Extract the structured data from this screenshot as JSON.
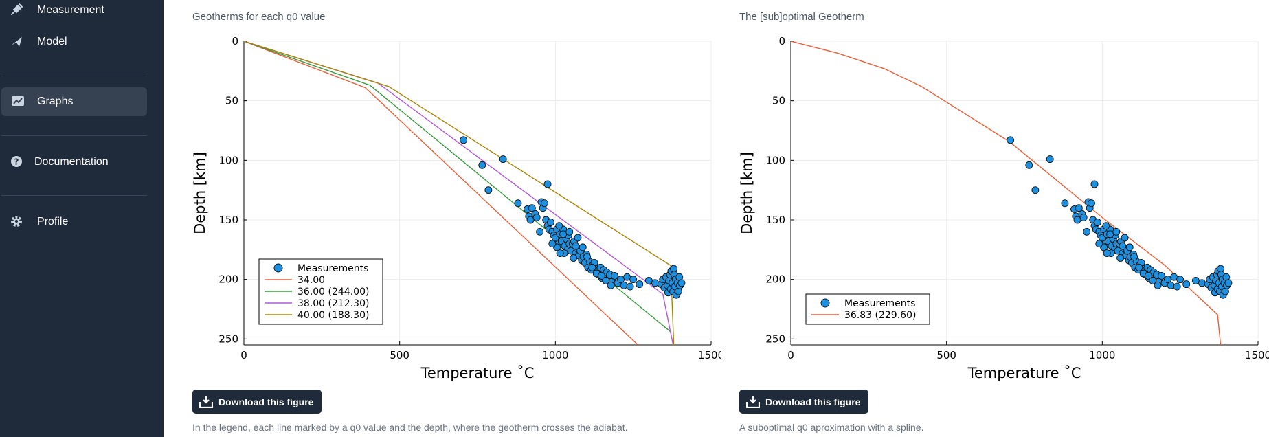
{
  "sidebar": {
    "items": [
      {
        "label": "Measurement",
        "icon": "syringe-icon"
      },
      {
        "label": "Model",
        "icon": "plane-icon"
      },
      {
        "label": "Graphs",
        "icon": "chart-icon",
        "active": true
      },
      {
        "label": "Documentation",
        "icon": "question-circle-icon"
      },
      {
        "label": "Profile",
        "icon": "gear-icon"
      }
    ]
  },
  "panels": [
    {
      "title": "Geotherms for each q0 value",
      "download_label": "Download this figure",
      "caption": "In the legend, each line marked by a q0 value and the depth, where the geotherm crosses the adiabat."
    },
    {
      "title": "The [sub]optimal Geotherm",
      "download_label": "Download this figure",
      "caption": "A suboptimal q0 aproximation with a spline."
    }
  ],
  "chart_data": [
    {
      "type": "line",
      "xlabel": "Temperature ˚C",
      "ylabel": "Depth [km]",
      "xlim": [
        0,
        1500
      ],
      "ylim": [
        255,
        0
      ],
      "x_ticks": [
        0,
        500,
        1000,
        1500
      ],
      "y_ticks": [
        0,
        50,
        100,
        150,
        200,
        250
      ],
      "grid": true,
      "legend": "bottom-left",
      "series": [
        {
          "name": "Measurements",
          "kind": "scatter",
          "color": "#1e90e0",
          "points": [
            [
              705,
              83
            ],
            [
              765,
              104
            ],
            [
              785,
              125
            ],
            [
              832,
              99
            ],
            [
              975,
              120
            ],
            [
              880,
              136
            ],
            [
              910,
              141
            ],
            [
              915,
              147
            ],
            [
              920,
              150
            ],
            [
              935,
              145
            ],
            [
              950,
              160
            ],
            [
              955,
              135
            ],
            [
              960,
              140
            ],
            [
              965,
              136
            ],
            [
              970,
              150
            ],
            [
              975,
              155
            ],
            [
              980,
              158
            ],
            [
              985,
              152
            ],
            [
              990,
              160
            ],
            [
              995,
              163
            ],
            [
              1000,
              165
            ],
            [
              1005,
              158
            ],
            [
              1010,
              170
            ],
            [
              1015,
              162
            ],
            [
              1020,
              168
            ],
            [
              1025,
              158
            ],
            [
              1030,
              172
            ],
            [
              1035,
              166
            ],
            [
              1040,
              175
            ],
            [
              1045,
              170
            ],
            [
              1050,
              176
            ],
            [
              1055,
              170
            ],
            [
              1060,
              168
            ],
            [
              1065,
              178
            ],
            [
              1070,
              174
            ],
            [
              1075,
              180
            ],
            [
              1080,
              176
            ],
            [
              1085,
              184
            ],
            [
              1090,
              181
            ],
            [
              1095,
              186
            ],
            [
              1100,
              179
            ],
            [
              1105,
              190
            ],
            [
              1110,
              185
            ],
            [
              1115,
              192
            ],
            [
              1120,
              188
            ],
            [
              1125,
              186
            ],
            [
              1130,
              191
            ],
            [
              1135,
              193
            ],
            [
              1140,
              196
            ],
            [
              1145,
              190
            ],
            [
              1150,
              199
            ],
            [
              1155,
              192
            ],
            [
              1160,
              198
            ],
            [
              1165,
              194
            ],
            [
              1170,
              200
            ],
            [
              1175,
              196
            ],
            [
              1180,
              202
            ],
            [
              1190,
              197
            ],
            [
              1200,
              203
            ],
            [
              1210,
              200
            ],
            [
              1220,
              205
            ],
            [
              1230,
              198
            ],
            [
              1240,
              206
            ],
            [
              1250,
              200
            ],
            [
              1270,
              204
            ],
            [
              1300,
              201
            ],
            [
              1320,
              203
            ],
            [
              1340,
              204
            ],
            [
              1345,
              200
            ],
            [
              1350,
              207
            ],
            [
              1355,
              198
            ],
            [
              1360,
              205
            ],
            [
              1362,
              211
            ],
            [
              1365,
              201
            ],
            [
              1368,
              196
            ],
            [
              1370,
              208
            ],
            [
              1372,
              193
            ],
            [
              1375,
              203
            ],
            [
              1378,
              210
            ],
            [
              1380,
              191
            ],
            [
              1382,
              196
            ],
            [
              1384,
              206
            ],
            [
              1386,
              200
            ],
            [
              1388,
              213
            ],
            [
              1392,
              203
            ],
            [
              1395,
              210
            ],
            [
              1398,
              198
            ],
            [
              1400,
              205
            ],
            [
              1405,
              203
            ],
            [
              925,
              140
            ],
            [
              940,
              148
            ],
            [
              1012,
              155
            ],
            [
              1028,
              178
            ],
            [
              1042,
              163
            ],
            [
              1058,
              182
            ],
            [
              1072,
              165
            ],
            [
              1088,
              173
            ],
            [
              1102,
              181
            ],
            [
              1118,
              190
            ],
            [
              1132,
              195
            ],
            [
              1148,
              197
            ],
            [
              1162,
              201
            ],
            [
              1178,
              205
            ],
            [
              1025,
              162
            ],
            [
              1045,
              160
            ],
            [
              1065,
              172
            ],
            [
              1005,
              173
            ],
            [
              1015,
              178
            ],
            [
              990,
              170
            ]
          ]
        },
        {
          "name": "34.00",
          "color": "#e8603a",
          "points": [
            [
              0,
              0
            ],
            [
              390,
              39
            ],
            [
              1265,
              255
            ]
          ]
        },
        {
          "name": "36.00 (244.00)",
          "color": "#3a9a40",
          "points": [
            [
              0,
              0
            ],
            [
              405,
              37
            ],
            [
              1370,
              244
            ]
          ]
        },
        {
          "name": "38.00 (212.30)",
          "color": "#b05ad8",
          "points": [
            [
              0,
              0
            ],
            [
              430,
              35
            ],
            [
              1345,
              212.3
            ],
            [
              1378,
              255
            ]
          ]
        },
        {
          "name": "40.00 (188.30)",
          "color": "#a8850a",
          "points": [
            [
              0,
              0
            ],
            [
              465,
              38
            ],
            [
              1370,
              188.3
            ],
            [
              1380,
              255
            ]
          ]
        }
      ]
    },
    {
      "type": "line",
      "xlabel": "Temperature ˚C",
      "ylabel": "Depth [km]",
      "xlim": [
        0,
        1500
      ],
      "ylim": [
        255,
        0
      ],
      "x_ticks": [
        0,
        500,
        1000,
        1500
      ],
      "y_ticks": [
        0,
        50,
        100,
        150,
        200,
        250
      ],
      "grid": true,
      "legend": "bottom-left",
      "series": [
        {
          "name": "Measurements",
          "kind": "scatter",
          "color": "#1e90e0",
          "points": [
            [
              705,
              83
            ],
            [
              765,
              104
            ],
            [
              785,
              125
            ],
            [
              832,
              99
            ],
            [
              975,
              120
            ],
            [
              880,
              136
            ],
            [
              910,
              141
            ],
            [
              915,
              147
            ],
            [
              920,
              150
            ],
            [
              935,
              145
            ],
            [
              950,
              160
            ],
            [
              955,
              135
            ],
            [
              960,
              140
            ],
            [
              965,
              136
            ],
            [
              970,
              150
            ],
            [
              975,
              155
            ],
            [
              980,
              158
            ],
            [
              985,
              152
            ],
            [
              990,
              160
            ],
            [
              995,
              163
            ],
            [
              1000,
              165
            ],
            [
              1005,
              158
            ],
            [
              1010,
              170
            ],
            [
              1015,
              162
            ],
            [
              1020,
              168
            ],
            [
              1025,
              158
            ],
            [
              1030,
              172
            ],
            [
              1035,
              166
            ],
            [
              1040,
              175
            ],
            [
              1045,
              170
            ],
            [
              1050,
              176
            ],
            [
              1055,
              170
            ],
            [
              1060,
              168
            ],
            [
              1065,
              178
            ],
            [
              1070,
              174
            ],
            [
              1075,
              180
            ],
            [
              1080,
              176
            ],
            [
              1085,
              184
            ],
            [
              1090,
              181
            ],
            [
              1095,
              186
            ],
            [
              1100,
              179
            ],
            [
              1105,
              190
            ],
            [
              1110,
              185
            ],
            [
              1115,
              192
            ],
            [
              1120,
              188
            ],
            [
              1125,
              186
            ],
            [
              1130,
              191
            ],
            [
              1135,
              193
            ],
            [
              1140,
              196
            ],
            [
              1145,
              190
            ],
            [
              1150,
              199
            ],
            [
              1155,
              192
            ],
            [
              1160,
              198
            ],
            [
              1165,
              194
            ],
            [
              1170,
              200
            ],
            [
              1175,
              196
            ],
            [
              1180,
              202
            ],
            [
              1190,
              197
            ],
            [
              1200,
              203
            ],
            [
              1210,
              200
            ],
            [
              1220,
              205
            ],
            [
              1230,
              198
            ],
            [
              1240,
              206
            ],
            [
              1250,
              200
            ],
            [
              1270,
              204
            ],
            [
              1300,
              201
            ],
            [
              1320,
              203
            ],
            [
              1340,
              204
            ],
            [
              1345,
              200
            ],
            [
              1350,
              207
            ],
            [
              1355,
              198
            ],
            [
              1360,
              205
            ],
            [
              1362,
              211
            ],
            [
              1365,
              201
            ],
            [
              1368,
              196
            ],
            [
              1370,
              208
            ],
            [
              1372,
              193
            ],
            [
              1375,
              203
            ],
            [
              1378,
              210
            ],
            [
              1380,
              191
            ],
            [
              1382,
              196
            ],
            [
              1384,
              206
            ],
            [
              1386,
              200
            ],
            [
              1388,
              213
            ],
            [
              1392,
              203
            ],
            [
              1395,
              210
            ],
            [
              1398,
              198
            ],
            [
              1400,
              205
            ],
            [
              1405,
              203
            ],
            [
              925,
              140
            ],
            [
              940,
              148
            ],
            [
              1012,
              155
            ],
            [
              1028,
              178
            ],
            [
              1042,
              163
            ],
            [
              1058,
              182
            ],
            [
              1072,
              165
            ],
            [
              1088,
              173
            ],
            [
              1102,
              181
            ],
            [
              1118,
              190
            ],
            [
              1132,
              195
            ],
            [
              1148,
              197
            ],
            [
              1162,
              201
            ],
            [
              1178,
              205
            ],
            [
              1025,
              162
            ],
            [
              1045,
              160
            ],
            [
              1065,
              172
            ],
            [
              1005,
              173
            ],
            [
              1015,
              178
            ],
            [
              990,
              170
            ]
          ]
        },
        {
          "name": "36.83 (229.60)",
          "color": "#e8603a",
          "points": [
            [
              0,
              0
            ],
            [
              150,
              10
            ],
            [
              300,
              23
            ],
            [
              420,
              38
            ],
            [
              700,
              84
            ],
            [
              1000,
              148
            ],
            [
              1200,
              188
            ],
            [
              1370,
              229.6
            ],
            [
              1380,
              255
            ]
          ]
        }
      ]
    }
  ]
}
